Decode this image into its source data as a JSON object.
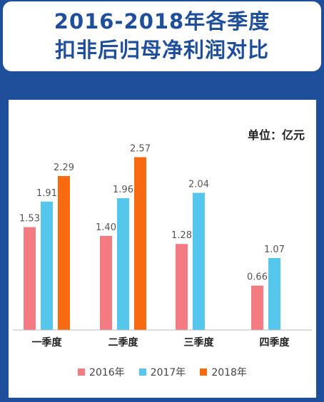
{
  "title_lines": [
    "2016-2018年各季度",
    "扣非后归母净利润对比"
  ],
  "unit_label": "单位：亿元",
  "chart_data": {
    "type": "bar",
    "title": "2016-2018年各季度扣非后归母净利润对比",
    "categories": [
      "一季度",
      "二季度",
      "三季度",
      "四季度"
    ],
    "series": [
      {
        "name": "2016年",
        "color": "#f47b82",
        "values": [
          1.53,
          1.4,
          1.28,
          0.66
        ],
        "labels": [
          "1.53",
          "1.40",
          "1.28",
          "0.66"
        ]
      },
      {
        "name": "2017年",
        "color": "#55c6ec",
        "values": [
          1.91,
          1.96,
          2.04,
          1.07
        ],
        "labels": [
          "1.91",
          "1.96",
          "2.04",
          "1.07"
        ]
      },
      {
        "name": "2018年",
        "color": "#f86a0f",
        "values": [
          2.29,
          2.57,
          null,
          null
        ],
        "labels": [
          "2.29",
          "2.57",
          "",
          ""
        ]
      }
    ],
    "unit": "亿元",
    "ylim": [
      0,
      2.65
    ],
    "grid": false,
    "legend_position": "bottom"
  }
}
